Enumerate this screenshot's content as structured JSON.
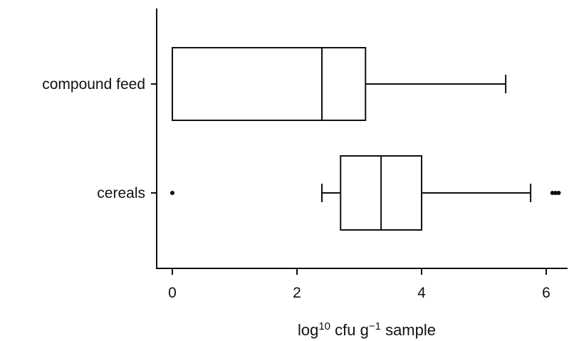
{
  "chart_data": {
    "type": "boxplot",
    "orientation": "horizontal",
    "xlabel": {
      "prefix": "log",
      "superscript": "10",
      "middle": " cfu g",
      "superscript2": "−1",
      "suffix": " sample"
    },
    "xlim": [
      -0.25,
      6.3
    ],
    "xticks": [
      0,
      2,
      4,
      6
    ],
    "xtick_labels": [
      "0",
      "2",
      "4",
      "6"
    ],
    "grid": false,
    "categories": [
      "compound feed",
      "cereals"
    ],
    "boxes": [
      {
        "category": "compound feed",
        "whisker_low": 0,
        "q1": 0,
        "median": 2.4,
        "q3": 3.1,
        "whisker_high": 5.35,
        "outliers": []
      },
      {
        "category": "cereals",
        "whisker_low": 2.4,
        "q1": 2.7,
        "median": 3.35,
        "q3": 4.0,
        "whisker_high": 5.75,
        "outliers": [
          0,
          6.1,
          6.15,
          6.2
        ]
      }
    ]
  }
}
